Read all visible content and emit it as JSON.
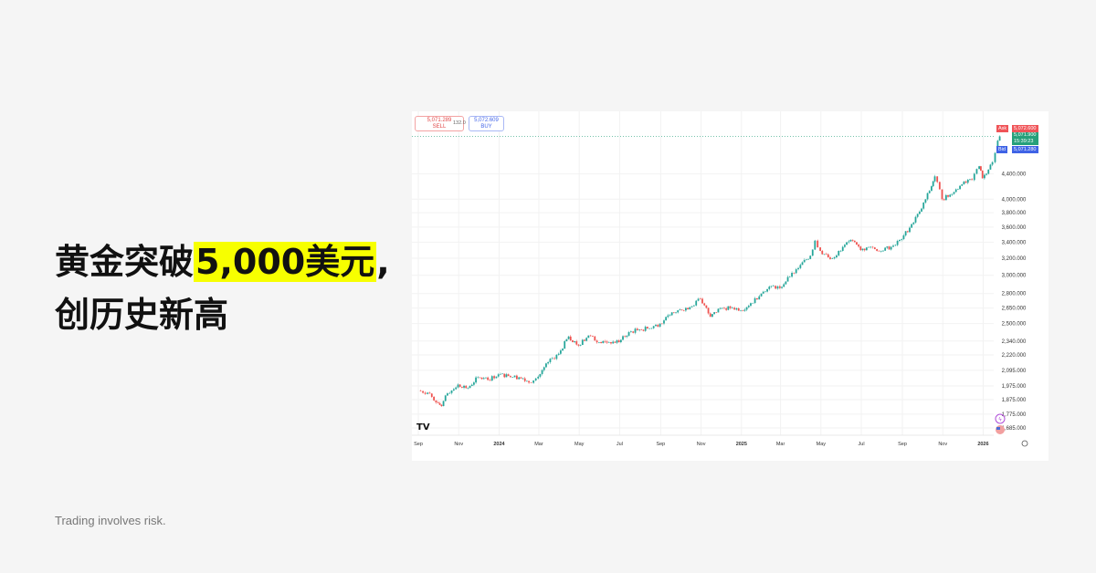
{
  "headline": {
    "line1_a": "黄金突破",
    "line1_highlight": "5,000美元",
    "line1_b": ",",
    "line2": "创历史新高"
  },
  "footer": "Trading involves risk.",
  "trade_panel": {
    "sell_price": "5,071.289",
    "sell_label": "SELL",
    "spread": "132.0",
    "buy_price": "5,072.609",
    "buy_label": "BUY"
  },
  "price_tags": {
    "ask_label": "Ask",
    "ask_price": "5,072.600",
    "last_price": "5,071.900",
    "countdown": "15:39:23",
    "bid_label": "Bid",
    "bid_price": "5,071.280"
  },
  "colors": {
    "up": "#26a69a",
    "down": "#ef5350",
    "highlight": "#f7ff00",
    "ask": "#f05458",
    "bid": "#3f63e6",
    "last": "#26a07a"
  },
  "chart_data": {
    "type": "candlestick",
    "y_scale": "log",
    "ylim": [
      1640,
      5100
    ],
    "y_ticks": [
      "1,685.000",
      "1,775.000",
      "1,875.000",
      "1,975.000",
      "2,095.000",
      "2,220.000",
      "2,340.000",
      "2,500.000",
      "2,650.000",
      "2,800.000",
      "3,000.000",
      "3,200.000",
      "3,400.000",
      "3,600.000",
      "3,800.000",
      "4,000.000",
      "4,400.000"
    ],
    "x_ticks": [
      [
        "2023-09-01",
        "Sep"
      ],
      [
        "2023-11-01",
        "Nov"
      ],
      [
        "2024-01-01",
        "2024"
      ],
      [
        "2024-03-01",
        "Mar"
      ],
      [
        "2024-05-01",
        "May"
      ],
      [
        "2024-07-01",
        "Jul"
      ],
      [
        "2024-09-01",
        "Sep"
      ],
      [
        "2024-11-01",
        "Nov"
      ],
      [
        "2025-01-01",
        "2025"
      ],
      [
        "2025-03-01",
        "Mar"
      ],
      [
        "2025-05-01",
        "May"
      ],
      [
        "2025-07-01",
        "Jul"
      ],
      [
        "2025-09-01",
        "Sep"
      ],
      [
        "2025-11-01",
        "Nov"
      ],
      [
        "2026-01-01",
        "2026"
      ]
    ],
    "closes": [
      [
        "2023-09-01",
        1940
      ],
      [
        "2023-09-15",
        1925
      ],
      [
        "2023-10-01",
        1850
      ],
      [
        "2023-10-06",
        1830
      ],
      [
        "2023-10-15",
        1920
      ],
      [
        "2023-10-31",
        1985
      ],
      [
        "2023-11-15",
        1960
      ],
      [
        "2023-11-30",
        2040
      ],
      [
        "2023-12-15",
        2020
      ],
      [
        "2023-12-31",
        2063
      ],
      [
        "2024-01-15",
        2050
      ],
      [
        "2024-01-31",
        2040
      ],
      [
        "2024-02-15",
        2000
      ],
      [
        "2024-02-29",
        2045
      ],
      [
        "2024-03-15",
        2160
      ],
      [
        "2024-03-31",
        2230
      ],
      [
        "2024-04-15",
        2380
      ],
      [
        "2024-04-30",
        2300
      ],
      [
        "2024-05-15",
        2390
      ],
      [
        "2024-05-31",
        2330
      ],
      [
        "2024-06-15",
        2330
      ],
      [
        "2024-06-30",
        2330
      ],
      [
        "2024-07-15",
        2420
      ],
      [
        "2024-07-31",
        2445
      ],
      [
        "2024-08-15",
        2455
      ],
      [
        "2024-08-31",
        2500
      ],
      [
        "2024-09-15",
        2580
      ],
      [
        "2024-09-30",
        2635
      ],
      [
        "2024-10-15",
        2660
      ],
      [
        "2024-10-31",
        2745
      ],
      [
        "2024-11-15",
        2565
      ],
      [
        "2024-11-30",
        2650
      ],
      [
        "2024-12-15",
        2650
      ],
      [
        "2024-12-31",
        2625
      ],
      [
        "2025-01-15",
        2700
      ],
      [
        "2025-01-31",
        2800
      ],
      [
        "2025-02-15",
        2880
      ],
      [
        "2025-02-28",
        2860
      ],
      [
        "2025-03-15",
        2985
      ],
      [
        "2025-03-31",
        3120
      ],
      [
        "2025-04-15",
        3230
      ],
      [
        "2025-04-22",
        3420
      ],
      [
        "2025-04-30",
        3290
      ],
      [
        "2025-05-15",
        3190
      ],
      [
        "2025-05-31",
        3290
      ],
      [
        "2025-06-15",
        3430
      ],
      [
        "2025-06-30",
        3300
      ],
      [
        "2025-07-15",
        3340
      ],
      [
        "2025-07-31",
        3290
      ],
      [
        "2025-08-15",
        3340
      ],
      [
        "2025-08-31",
        3440
      ],
      [
        "2025-09-15",
        3640
      ],
      [
        "2025-09-30",
        3860
      ],
      [
        "2025-10-15",
        4200
      ],
      [
        "2025-10-20",
        4360
      ],
      [
        "2025-10-31",
        4000
      ],
      [
        "2025-11-15",
        4080
      ],
      [
        "2025-11-30",
        4230
      ],
      [
        "2025-12-15",
        4300
      ],
      [
        "2025-12-26",
        4530
      ],
      [
        "2025-12-31",
        4330
      ],
      [
        "2026-01-15",
        4600
      ],
      [
        "2026-01-23",
        4990
      ],
      [
        "2026-01-26",
        5072
      ]
    ],
    "grid": true
  }
}
